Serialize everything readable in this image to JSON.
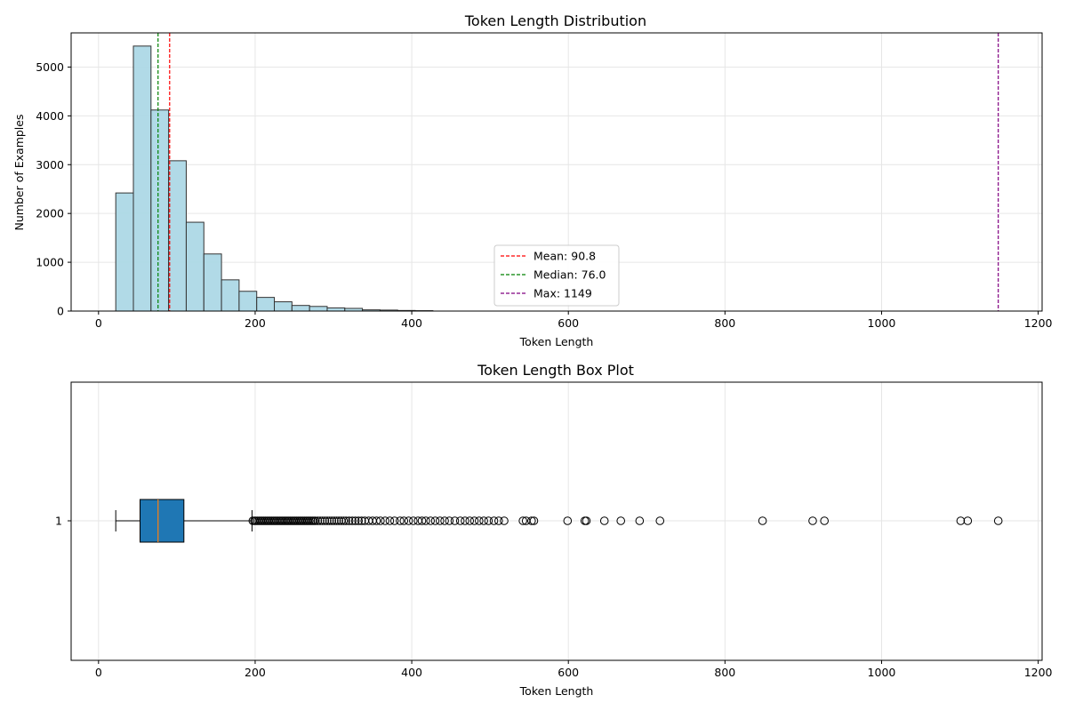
{
  "chart_data": [
    {
      "type": "bar",
      "subtype": "histogram",
      "title": "Token Length Distribution",
      "xlabel": "Token Length",
      "ylabel": "Number of Examples",
      "xlim": [
        -35,
        1205
      ],
      "ylim": [
        0,
        5700
      ],
      "xticks": [
        0,
        200,
        400,
        600,
        800,
        1000,
        1200
      ],
      "yticks": [
        0,
        1000,
        2000,
        3000,
        4000,
        5000
      ],
      "grid": true,
      "bar_color": "#add8e6",
      "bar_edge_color": "#333333",
      "bin_edges": [
        22,
        44.5,
        67,
        89.5,
        112,
        134.5,
        157,
        179.5,
        202,
        224.5,
        247,
        269.5,
        292,
        314.5,
        337,
        359.5,
        382,
        404.5,
        427
      ],
      "values": [
        2420,
        5430,
        4120,
        3080,
        1820,
        1170,
        640,
        405,
        280,
        190,
        115,
        95,
        65,
        55,
        25,
        20,
        12,
        8
      ],
      "reference_lines": [
        {
          "label": "Mean: 90.8",
          "x": 90.8,
          "color": "#ff0000",
          "style": "dashed"
        },
        {
          "label": "Median: 76.0",
          "x": 76.0,
          "color": "#008000",
          "style": "dashed"
        },
        {
          "label": "Max: 1149",
          "x": 1149,
          "color": "#800080",
          "style": "dashed"
        }
      ],
      "legend_position": "center-bottom"
    },
    {
      "type": "box",
      "orientation": "horizontal",
      "title": "Token Length Box Plot",
      "xlabel": "Token Length",
      "xlim": [
        -35,
        1205
      ],
      "xticks": [
        0,
        200,
        400,
        600,
        800,
        1000,
        1200
      ],
      "ytick_label": "1",
      "grid": true,
      "box_color": "#1f77b4",
      "median_color": "#ff7f0e",
      "whisker_low": 22,
      "q1": 53,
      "median": 76,
      "q3": 109,
      "whisker_high": 196,
      "outliers": [
        197,
        199,
        201,
        203,
        205,
        207,
        209,
        211,
        213,
        215,
        217,
        219,
        221,
        223,
        225,
        227,
        229,
        231,
        233,
        235,
        237,
        239,
        241,
        243,
        245,
        247,
        249,
        251,
        253,
        255,
        257,
        259,
        261,
        263,
        265,
        267,
        269,
        271,
        273,
        275,
        277,
        280,
        283,
        286,
        289,
        292,
        295,
        298,
        301,
        304,
        307,
        310,
        313,
        316,
        320,
        324,
        328,
        332,
        336,
        340,
        345,
        350,
        355,
        360,
        366,
        372,
        378,
        385,
        390,
        396,
        402,
        408,
        413,
        418,
        424,
        430,
        436,
        442,
        448,
        455,
        462,
        468,
        474,
        480,
        486,
        492,
        498,
        505,
        511,
        518,
        542,
        546,
        553,
        556,
        599,
        621,
        623,
        646,
        667,
        691,
        717,
        848,
        912,
        927,
        1101,
        1110,
        1149
      ]
    }
  ]
}
